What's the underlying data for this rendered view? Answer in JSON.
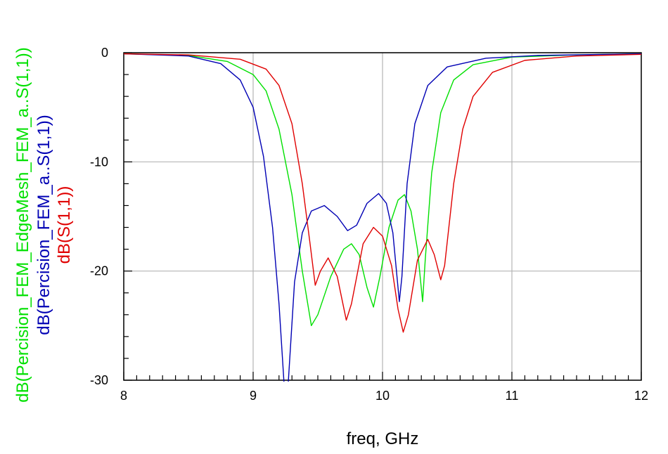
{
  "chart_data": {
    "type": "line",
    "title": "",
    "xlabel": "freq, GHz",
    "ylabel": "",
    "xlim": [
      8,
      12
    ],
    "ylim": [
      -30,
      0
    ],
    "x_ticks": [
      8,
      9,
      10,
      11,
      12
    ],
    "x_tick_labels": [
      "8",
      "9",
      "10",
      "11",
      "12"
    ],
    "y_ticks": [
      0,
      -10,
      -20,
      -30
    ],
    "y_tick_labels": [
      "0",
      "-10",
      "-20",
      "-30"
    ],
    "grid": true,
    "series": [
      {
        "name": "dB(Percision_FEM_EdgeMesh_FEM_a..S(1,1))",
        "color": "#00e000",
        "points": [
          [
            8.0,
            -0.1
          ],
          [
            8.5,
            -0.25
          ],
          [
            8.8,
            -0.8
          ],
          [
            9.0,
            -2.0
          ],
          [
            9.1,
            -3.5
          ],
          [
            9.2,
            -7.0
          ],
          [
            9.3,
            -13.0
          ],
          [
            9.38,
            -20.0
          ],
          [
            9.45,
            -25.0
          ],
          [
            9.5,
            -24.0
          ],
          [
            9.6,
            -20.5
          ],
          [
            9.7,
            -18.0
          ],
          [
            9.76,
            -17.5
          ],
          [
            9.82,
            -18.5
          ],
          [
            9.88,
            -21.5
          ],
          [
            9.93,
            -23.3
          ],
          [
            9.98,
            -20.5
          ],
          [
            10.05,
            -16.0
          ],
          [
            10.12,
            -13.5
          ],
          [
            10.17,
            -13.0
          ],
          [
            10.22,
            -14.5
          ],
          [
            10.27,
            -18.0
          ],
          [
            10.31,
            -22.8
          ],
          [
            10.33,
            -19.0
          ],
          [
            10.38,
            -11.0
          ],
          [
            10.45,
            -5.5
          ],
          [
            10.55,
            -2.5
          ],
          [
            10.7,
            -1.1
          ],
          [
            11.0,
            -0.4
          ],
          [
            11.5,
            -0.2
          ],
          [
            12.0,
            -0.1
          ]
        ]
      },
      {
        "name": "dB(Percision_FEM_a..S(1,1))",
        "color": "#0000b4",
        "points": [
          [
            8.0,
            -0.1
          ],
          [
            8.5,
            -0.3
          ],
          [
            8.75,
            -1.0
          ],
          [
            8.9,
            -2.5
          ],
          [
            9.0,
            -5.0
          ],
          [
            9.08,
            -9.5
          ],
          [
            9.15,
            -16.0
          ],
          [
            9.2,
            -23.0
          ],
          [
            9.24,
            -30.5
          ],
          [
            9.27,
            -30.5
          ],
          [
            9.32,
            -21.0
          ],
          [
            9.38,
            -16.5
          ],
          [
            9.45,
            -14.5
          ],
          [
            9.55,
            -14.0
          ],
          [
            9.65,
            -15.0
          ],
          [
            9.73,
            -16.3
          ],
          [
            9.8,
            -15.8
          ],
          [
            9.88,
            -13.8
          ],
          [
            9.97,
            -12.9
          ],
          [
            10.03,
            -13.8
          ],
          [
            10.08,
            -16.5
          ],
          [
            10.13,
            -22.8
          ],
          [
            10.15,
            -20.5
          ],
          [
            10.19,
            -12.0
          ],
          [
            10.25,
            -6.5
          ],
          [
            10.35,
            -3.0
          ],
          [
            10.5,
            -1.3
          ],
          [
            10.8,
            -0.5
          ],
          [
            11.2,
            -0.25
          ],
          [
            12.0,
            -0.1
          ]
        ]
      },
      {
        "name": "dB(S(1,1))",
        "color": "#e00000",
        "points": [
          [
            8.0,
            -0.1
          ],
          [
            8.5,
            -0.2
          ],
          [
            8.9,
            -0.6
          ],
          [
            9.1,
            -1.5
          ],
          [
            9.2,
            -3.0
          ],
          [
            9.3,
            -6.5
          ],
          [
            9.38,
            -12.0
          ],
          [
            9.44,
            -17.5
          ],
          [
            9.48,
            -21.3
          ],
          [
            9.52,
            -20.0
          ],
          [
            9.58,
            -18.8
          ],
          [
            9.65,
            -20.5
          ],
          [
            9.72,
            -24.5
          ],
          [
            9.76,
            -23.0
          ],
          [
            9.85,
            -17.5
          ],
          [
            9.93,
            -16.0
          ],
          [
            10.0,
            -16.8
          ],
          [
            10.07,
            -19.5
          ],
          [
            10.12,
            -23.5
          ],
          [
            10.16,
            -25.6
          ],
          [
            10.2,
            -24.0
          ],
          [
            10.27,
            -19.0
          ],
          [
            10.35,
            -17.1
          ],
          [
            10.4,
            -18.5
          ],
          [
            10.45,
            -20.8
          ],
          [
            10.48,
            -19.5
          ],
          [
            10.55,
            -12.0
          ],
          [
            10.62,
            -7.0
          ],
          [
            10.7,
            -4.0
          ],
          [
            10.85,
            -1.8
          ],
          [
            11.1,
            -0.7
          ],
          [
            11.5,
            -0.3
          ],
          [
            12.0,
            -0.15
          ]
        ]
      }
    ]
  }
}
